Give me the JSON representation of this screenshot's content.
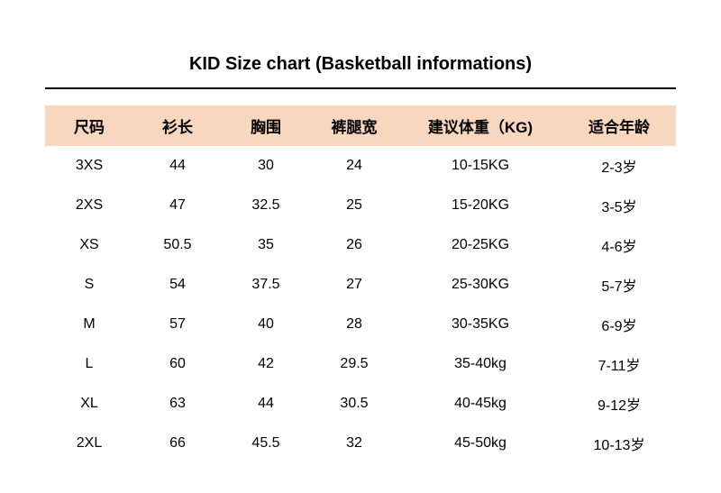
{
  "title": "KID Size chart (Basketball informations)",
  "table": {
    "type": "table",
    "header_bg": "#f7d7bd",
    "text_color": "#000000",
    "background_color": "#ffffff",
    "title_fontsize": 20,
    "header_fontsize": 17,
    "cell_fontsize": 16,
    "columns": [
      "尺码",
      "衫长",
      "胸围",
      "裤腿宽",
      "建议体重（KG)",
      "适合年龄"
    ],
    "column_widths_pct": [
      14,
      14,
      14,
      14,
      26,
      18
    ],
    "rows": [
      [
        "3XS",
        "44",
        "30",
        "24",
        "10-15KG",
        "2-3岁"
      ],
      [
        "2XS",
        "47",
        "32.5",
        "25",
        "15-20KG",
        "3-5岁"
      ],
      [
        "XS",
        "50.5",
        "35",
        "26",
        "20-25KG",
        "4-6岁"
      ],
      [
        "S",
        "54",
        "37.5",
        "27",
        "25-30KG",
        "5-7岁"
      ],
      [
        "M",
        "57",
        "40",
        "28",
        "30-35KG",
        "6-9岁"
      ],
      [
        "L",
        "60",
        "42",
        "29.5",
        "35-40kg",
        "7-11岁"
      ],
      [
        "XL",
        "63",
        "44",
        "30.5",
        "40-45kg",
        "9-12岁"
      ],
      [
        "2XL",
        "66",
        "45.5",
        "32",
        "45-50kg",
        "10-13岁"
      ]
    ]
  }
}
